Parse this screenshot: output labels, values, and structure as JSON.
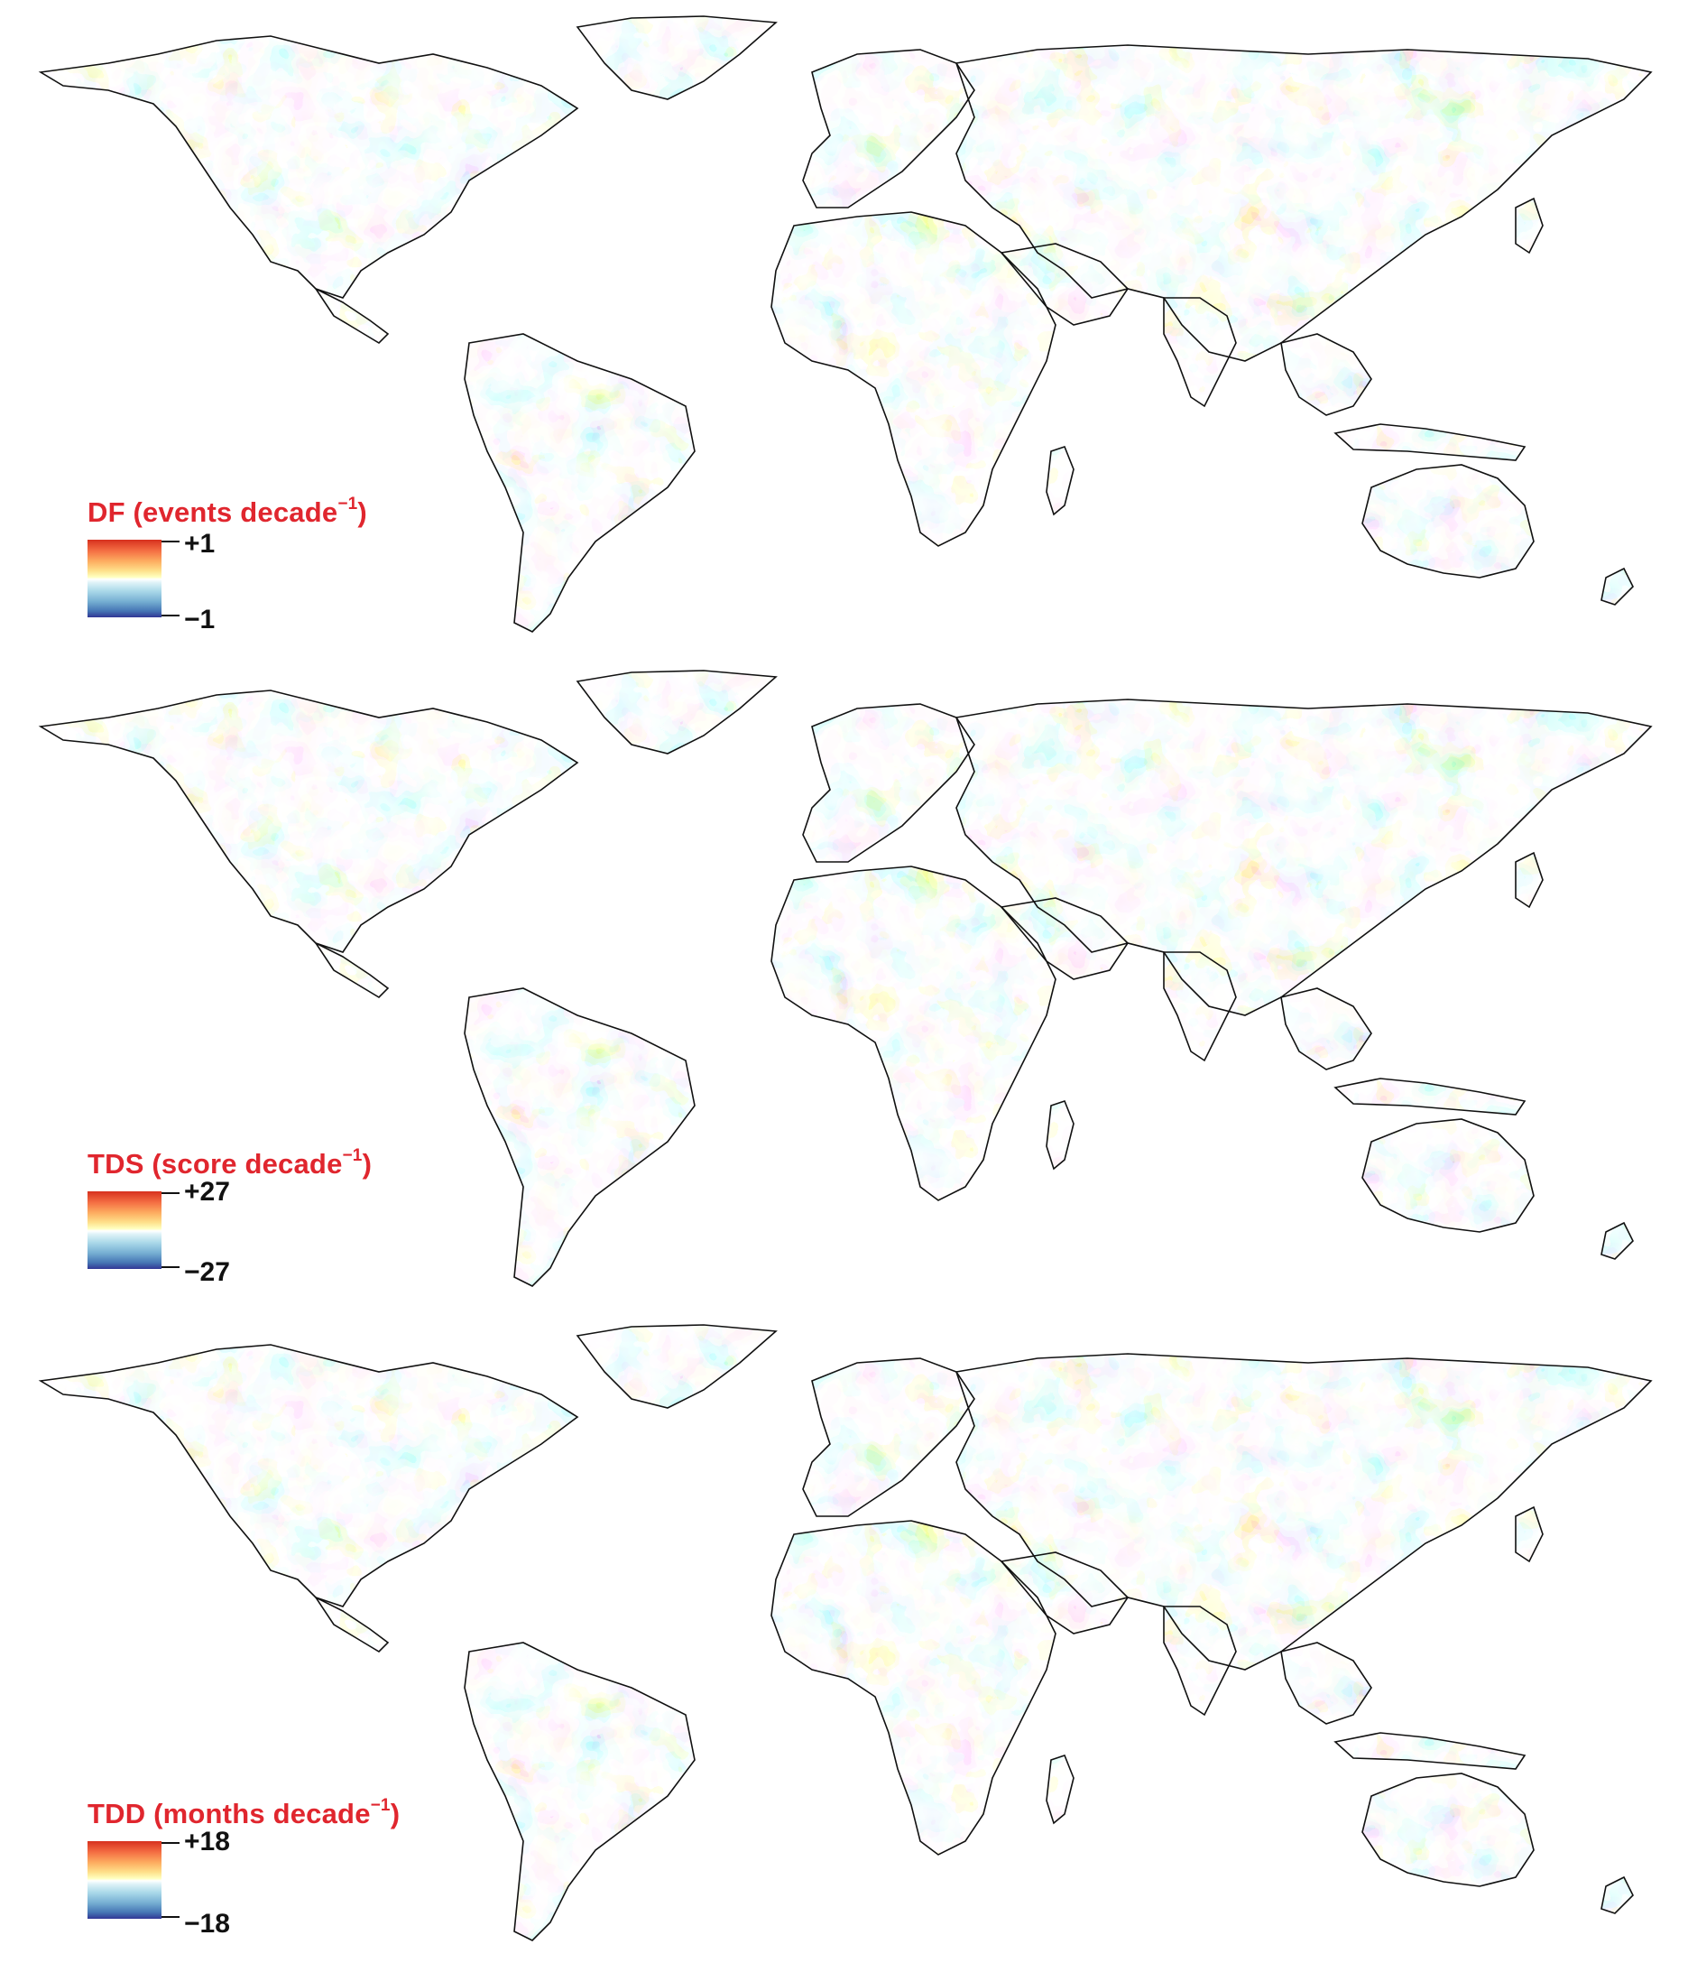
{
  "panels": [
    {
      "id": "df",
      "legend": {
        "title": "DF (events decade",
        "title_sup": "−1",
        "title_close": ")",
        "max_label": "+1",
        "min_label": "−1"
      }
    },
    {
      "id": "tds",
      "legend": {
        "title": "TDS (score decade",
        "title_sup": "−1",
        "title_close": ")",
        "max_label": "+27",
        "min_label": "−27"
      }
    },
    {
      "id": "tdd",
      "legend": {
        "title": "TDD (months decade",
        "title_sup": "−1",
        "title_close": ")",
        "max_label": "+18",
        "min_label": "−18"
      }
    }
  ],
  "colors": {
    "legend_title": "#e0262e",
    "scale_high": "#d7301f",
    "scale_mid_high": "#fee08b",
    "scale_mid": "#ffffff",
    "scale_mid_low": "#abd9e9",
    "scale_low": "#313695",
    "coastline": "#111111"
  }
}
